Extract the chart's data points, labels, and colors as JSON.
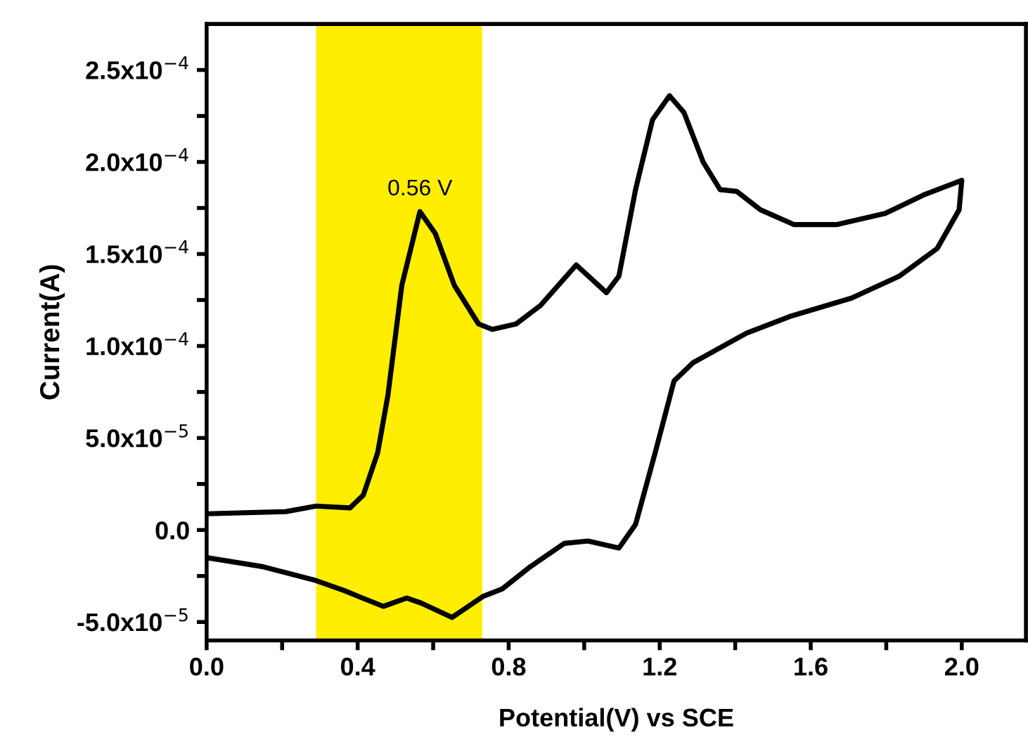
{
  "chart_data": {
    "type": "line",
    "xlabel": "Potential(V) vs SCE",
    "ylabel": "Current(A)",
    "series": [
      {
        "color": "#000000",
        "x": [
          0,
          0.21,
          0.29,
          0.38,
          0.415,
          0.453,
          0.48,
          0.517,
          0.565,
          0.606,
          0.656,
          0.72,
          0.757,
          0.82,
          0.884,
          0.979,
          1.059,
          1.092,
          1.136,
          1.181,
          1.226,
          1.264,
          1.315,
          1.36,
          1.404,
          1.467,
          1.555,
          1.67,
          1.797,
          1.898,
          2.0,
          1.993,
          1.935,
          1.835,
          1.708,
          1.544,
          1.43,
          1.289,
          1.238,
          1.188,
          1.136,
          1.092,
          1.01,
          0.947,
          0.857,
          0.783,
          0.733,
          0.65,
          0.568,
          0.53,
          0.468,
          0.365,
          0.29,
          0.15,
          0
        ],
        "values": [
          8.8e-06,
          1e-05,
          1.3e-05,
          1.2e-05,
          1.9e-05,
          4.2e-05,
          7.3e-05,
          0.000133,
          0.000173,
          0.000161,
          0.000133,
          0.000112,
          0.000109,
          0.000112,
          0.000122,
          0.000144,
          0.000129,
          0.000138,
          0.000185,
          0.000223,
          0.000236,
          0.000227,
          0.0002,
          0.000185,
          0.000184,
          0.000174,
          0.000166,
          0.000166,
          0.000172,
          0.000182,
          0.00019,
          0.000174,
          0.000153,
          0.000138,
          0.000126,
          0.000116,
          0.000107,
          9.1e-05,
          8.1e-05,
          4.2e-05,
          3e-06,
          -9.8e-06,
          -6e-06,
          -7.3e-06,
          -2e-05,
          -3.2e-05,
          -3.6e-05,
          -4.75e-05,
          -3.97e-05,
          -3.7e-05,
          -4.15e-05,
          -3.3e-05,
          -2.75e-05,
          -2e-05,
          -1.5e-05
        ]
      }
    ],
    "xlim": [
      0,
      2.17
    ],
    "ylim": [
      -6e-05,
      0.000275
    ],
    "xticks": [
      {
        "value": 0,
        "label": "0.0"
      },
      {
        "value": 0.2,
        "label": null
      },
      0.4,
      {
        "value": 0.6,
        "label": null
      },
      0.8,
      {
        "value": 1.0,
        "label": null
      },
      1.2,
      {
        "value": 1.4,
        "label": null
      },
      1.6,
      {
        "value": 1.8,
        "label": null
      },
      {
        "value": 2.0,
        "label": "2.0"
      }
    ],
    "yticks": [
      {
        "value": -5e-05,
        "label": "-5.0x10$^{−5}$"
      },
      {
        "value": -2.5e-05,
        "label": null
      },
      {
        "value": 0,
        "label": "0.0"
      },
      {
        "value": 2.5e-05,
        "label": null
      },
      {
        "value": 5e-05,
        "label": "5.0x10$^{−5}$"
      },
      {
        "value": 7.5e-05,
        "label": null
      },
      {
        "value": 0.0001,
        "label": "1.0x10$^{−4}$"
      },
      {
        "value": 0.000125,
        "label": null
      },
      {
        "value": 0.00015,
        "label": "1.5x10$^{−4}$"
      },
      {
        "value": 0.000175,
        "label": null
      },
      {
        "value": 0.0002,
        "label": "2.0x10$^{−4}$"
      },
      {
        "value": 0.000225,
        "label": null
      },
      {
        "value": 0.00025,
        "label": "2.5x10$^{−4}$"
      }
    ],
    "bands": [
      {
        "axis": "x",
        "from": 0.29,
        "to": 0.73,
        "color": "#ffee00"
      }
    ],
    "annotations": [
      {
        "text": "0.56 V",
        "x": 0.565,
        "y": 0.000173
      }
    ],
    "grid": false,
    "legend": false,
    "line_style": "solid",
    "marker": "none"
  }
}
